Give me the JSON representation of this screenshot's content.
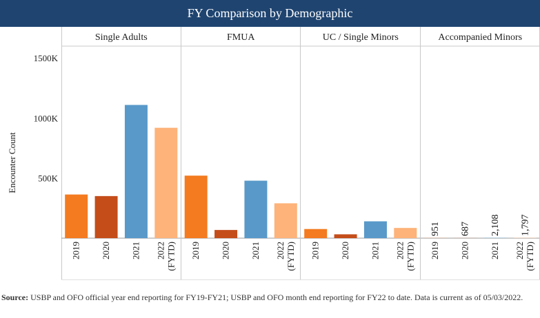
{
  "header": {
    "title": "FY Comparison by Demographic"
  },
  "chart_data": {
    "type": "bar",
    "title": "FY Comparison by Demographic",
    "ylabel": "Encounter Count",
    "ylim": [
      0,
      1600000
    ],
    "yticks": [
      {
        "value": 500000,
        "label": "500K"
      },
      {
        "value": 1000000,
        "label": "1000K"
      },
      {
        "value": 1500000,
        "label": "1500K"
      }
    ],
    "grid": false,
    "categories": [
      "2019",
      "2020",
      "2021",
      "2022 (FYTD)"
    ],
    "category_label_lines": [
      [
        "2019"
      ],
      [
        "2020"
      ],
      [
        "2021"
      ],
      [
        "2022",
        "(FYTD)"
      ]
    ],
    "colors": [
      "#f47b20",
      "#c44d1a",
      "#5899c9",
      "#fdb37a"
    ],
    "panels": [
      {
        "name": "Single Adults",
        "values": [
          363000,
          350000,
          1108000,
          918000
        ],
        "data_labels": null
      },
      {
        "name": "FMUA",
        "values": [
          520000,
          68000,
          478000,
          290000
        ],
        "data_labels": null
      },
      {
        "name": "UC / Single Minors",
        "values": [
          76000,
          32000,
          140000,
          85000
        ],
        "data_labels": null
      },
      {
        "name": "Accompanied Minors",
        "values": [
          951,
          687,
          2108,
          1797
        ],
        "data_labels": [
          "951",
          "687",
          "2,108",
          "1,797"
        ]
      }
    ]
  },
  "footnote": {
    "label": "Source:",
    "text": " USBP and OFO official year end reporting for FY19-FY21; USBP and OFO month end reporting for FY22 to date. Data is current as of 05/03/2022."
  }
}
